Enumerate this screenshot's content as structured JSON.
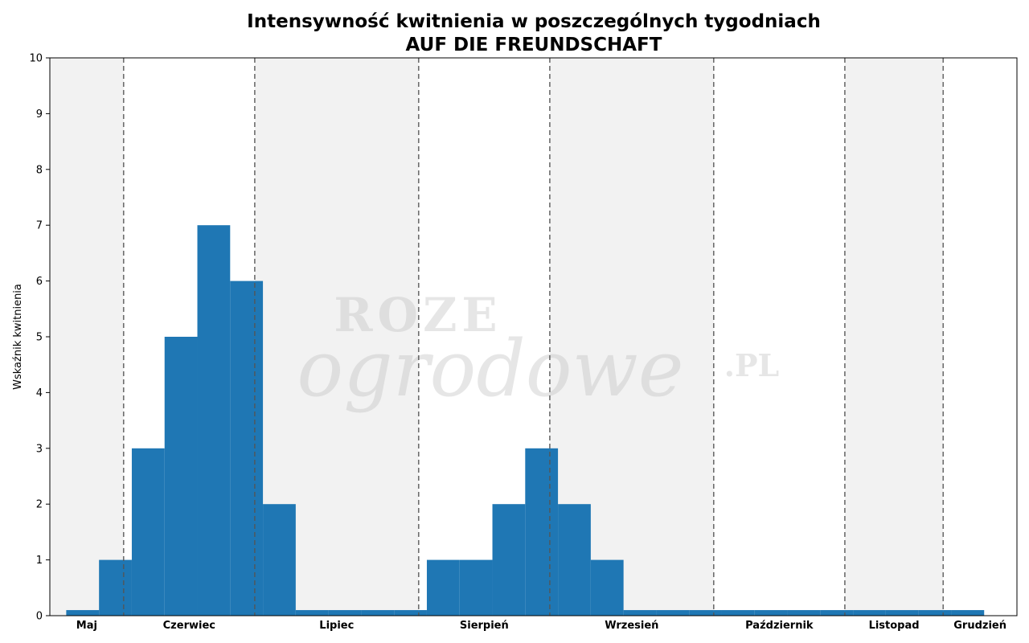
{
  "chart_data": {
    "type": "bar",
    "title": "Intensywność kwitnienia w poszczególnych tygodniach",
    "subtitle": "AUF DIE FREUNDSCHAFT",
    "ylabel": "Wskaźnik kwitnienia",
    "xlabel": "",
    "ylim": [
      0,
      10
    ],
    "yticks": [
      0,
      1,
      2,
      3,
      4,
      5,
      6,
      7,
      8,
      9,
      10
    ],
    "grid": false,
    "week_range": [
      0,
      29.5
    ],
    "weeks": [
      1,
      2,
      3,
      4,
      5,
      6,
      7,
      8,
      9,
      10,
      11,
      12,
      13,
      14,
      15,
      16,
      17,
      18,
      19,
      20,
      21,
      22,
      23,
      24,
      25,
      26,
      27,
      28
    ],
    "values": [
      0.1,
      1,
      3,
      5,
      7,
      6,
      2,
      0.1,
      0.1,
      0.1,
      0.1,
      1,
      1,
      2,
      3,
      2,
      1,
      0.1,
      0.1,
      0.1,
      0.1,
      0.1,
      0.1,
      0.1,
      0.1,
      0.1,
      0.1,
      0.1
    ],
    "bar_color": "#1f77b4",
    "months": [
      {
        "name": "Maj",
        "start": 0,
        "end": 2.25
      },
      {
        "name": "Czerwiec",
        "start": 2.25,
        "end": 6.25
      },
      {
        "name": "Lipiec",
        "start": 6.25,
        "end": 11.25
      },
      {
        "name": "Sierpień",
        "start": 11.25,
        "end": 15.25
      },
      {
        "name": "Wrzesień",
        "start": 15.25,
        "end": 20.25
      },
      {
        "name": "Październik",
        "start": 20.25,
        "end": 24.25
      },
      {
        "name": "Listopad",
        "start": 24.25,
        "end": 27.25
      },
      {
        "name": "Grudzień",
        "start": 27.25,
        "end": 29.5
      }
    ],
    "shade_color": "#f2f2f2",
    "divider_color": "#555555"
  },
  "watermark": {
    "line1": "ROZE",
    "line2": "ogrodowe",
    "suffix": ".PL"
  }
}
